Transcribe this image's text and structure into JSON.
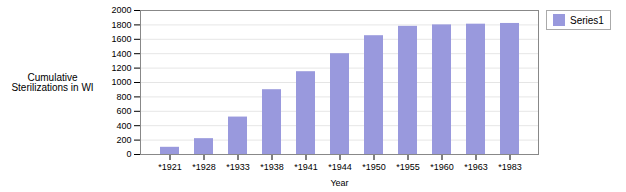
{
  "chart_data": {
    "type": "bar",
    "categories": [
      "*1921",
      "*1928",
      "*1933",
      "*1938",
      "*1941",
      "*1944",
      "*1950",
      "*1955",
      "*1960",
      "*1963",
      "*1983"
    ],
    "values": [
      100,
      220,
      520,
      900,
      1150,
      1400,
      1650,
      1780,
      1800,
      1810,
      1820
    ],
    "color": "#9999dd",
    "xlabel": "Year",
    "ylabel": "Cumulative\nSterilizations in WI",
    "series_name": "Series1",
    "legend": "right",
    "ylim": [
      0,
      2000
    ],
    "yticks": [
      0,
      200,
      400,
      600,
      800,
      1000,
      1200,
      1400,
      1600,
      1800,
      2000
    ],
    "grid": true
  }
}
